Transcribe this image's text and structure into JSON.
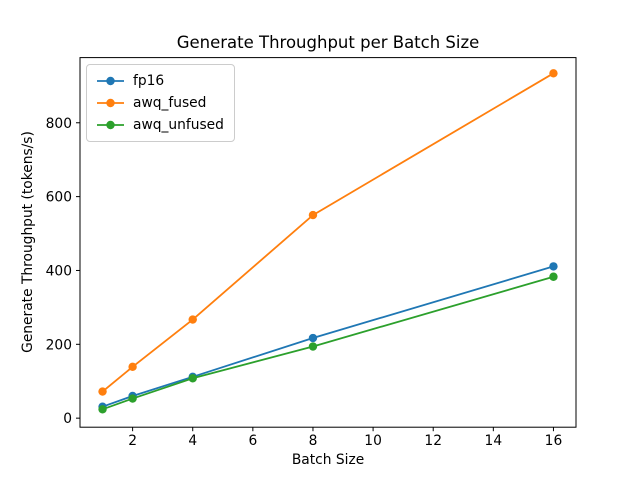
{
  "chart_data": {
    "type": "line",
    "title": "Generate Throughput per Batch Size",
    "xlabel": "Batch Size",
    "ylabel": "Generate Throughput (tokens/s)",
    "x": [
      1,
      2,
      4,
      8,
      16
    ],
    "series": [
      {
        "name": "fp16",
        "color": "#1f77b4",
        "values": [
          31,
          60,
          112,
          217,
          411
        ]
      },
      {
        "name": "awq_fused",
        "color": "#ff7f0e",
        "values": [
          72,
          139,
          267,
          550,
          934
        ]
      },
      {
        "name": "awq_unfused",
        "color": "#2ca02c",
        "values": [
          24,
          53,
          108,
          194,
          383
        ]
      }
    ],
    "xticks": [
      2,
      4,
      6,
      8,
      10,
      12,
      14,
      16
    ],
    "yticks": [
      0,
      200,
      400,
      600,
      800
    ],
    "xlim": [
      0.25,
      16.75
    ],
    "ylim": [
      -24.5,
      976.5
    ],
    "grid": false,
    "legend_position": "upper-left",
    "marker": "circle",
    "axes_color": "#000000",
    "background": "#ffffff"
  }
}
